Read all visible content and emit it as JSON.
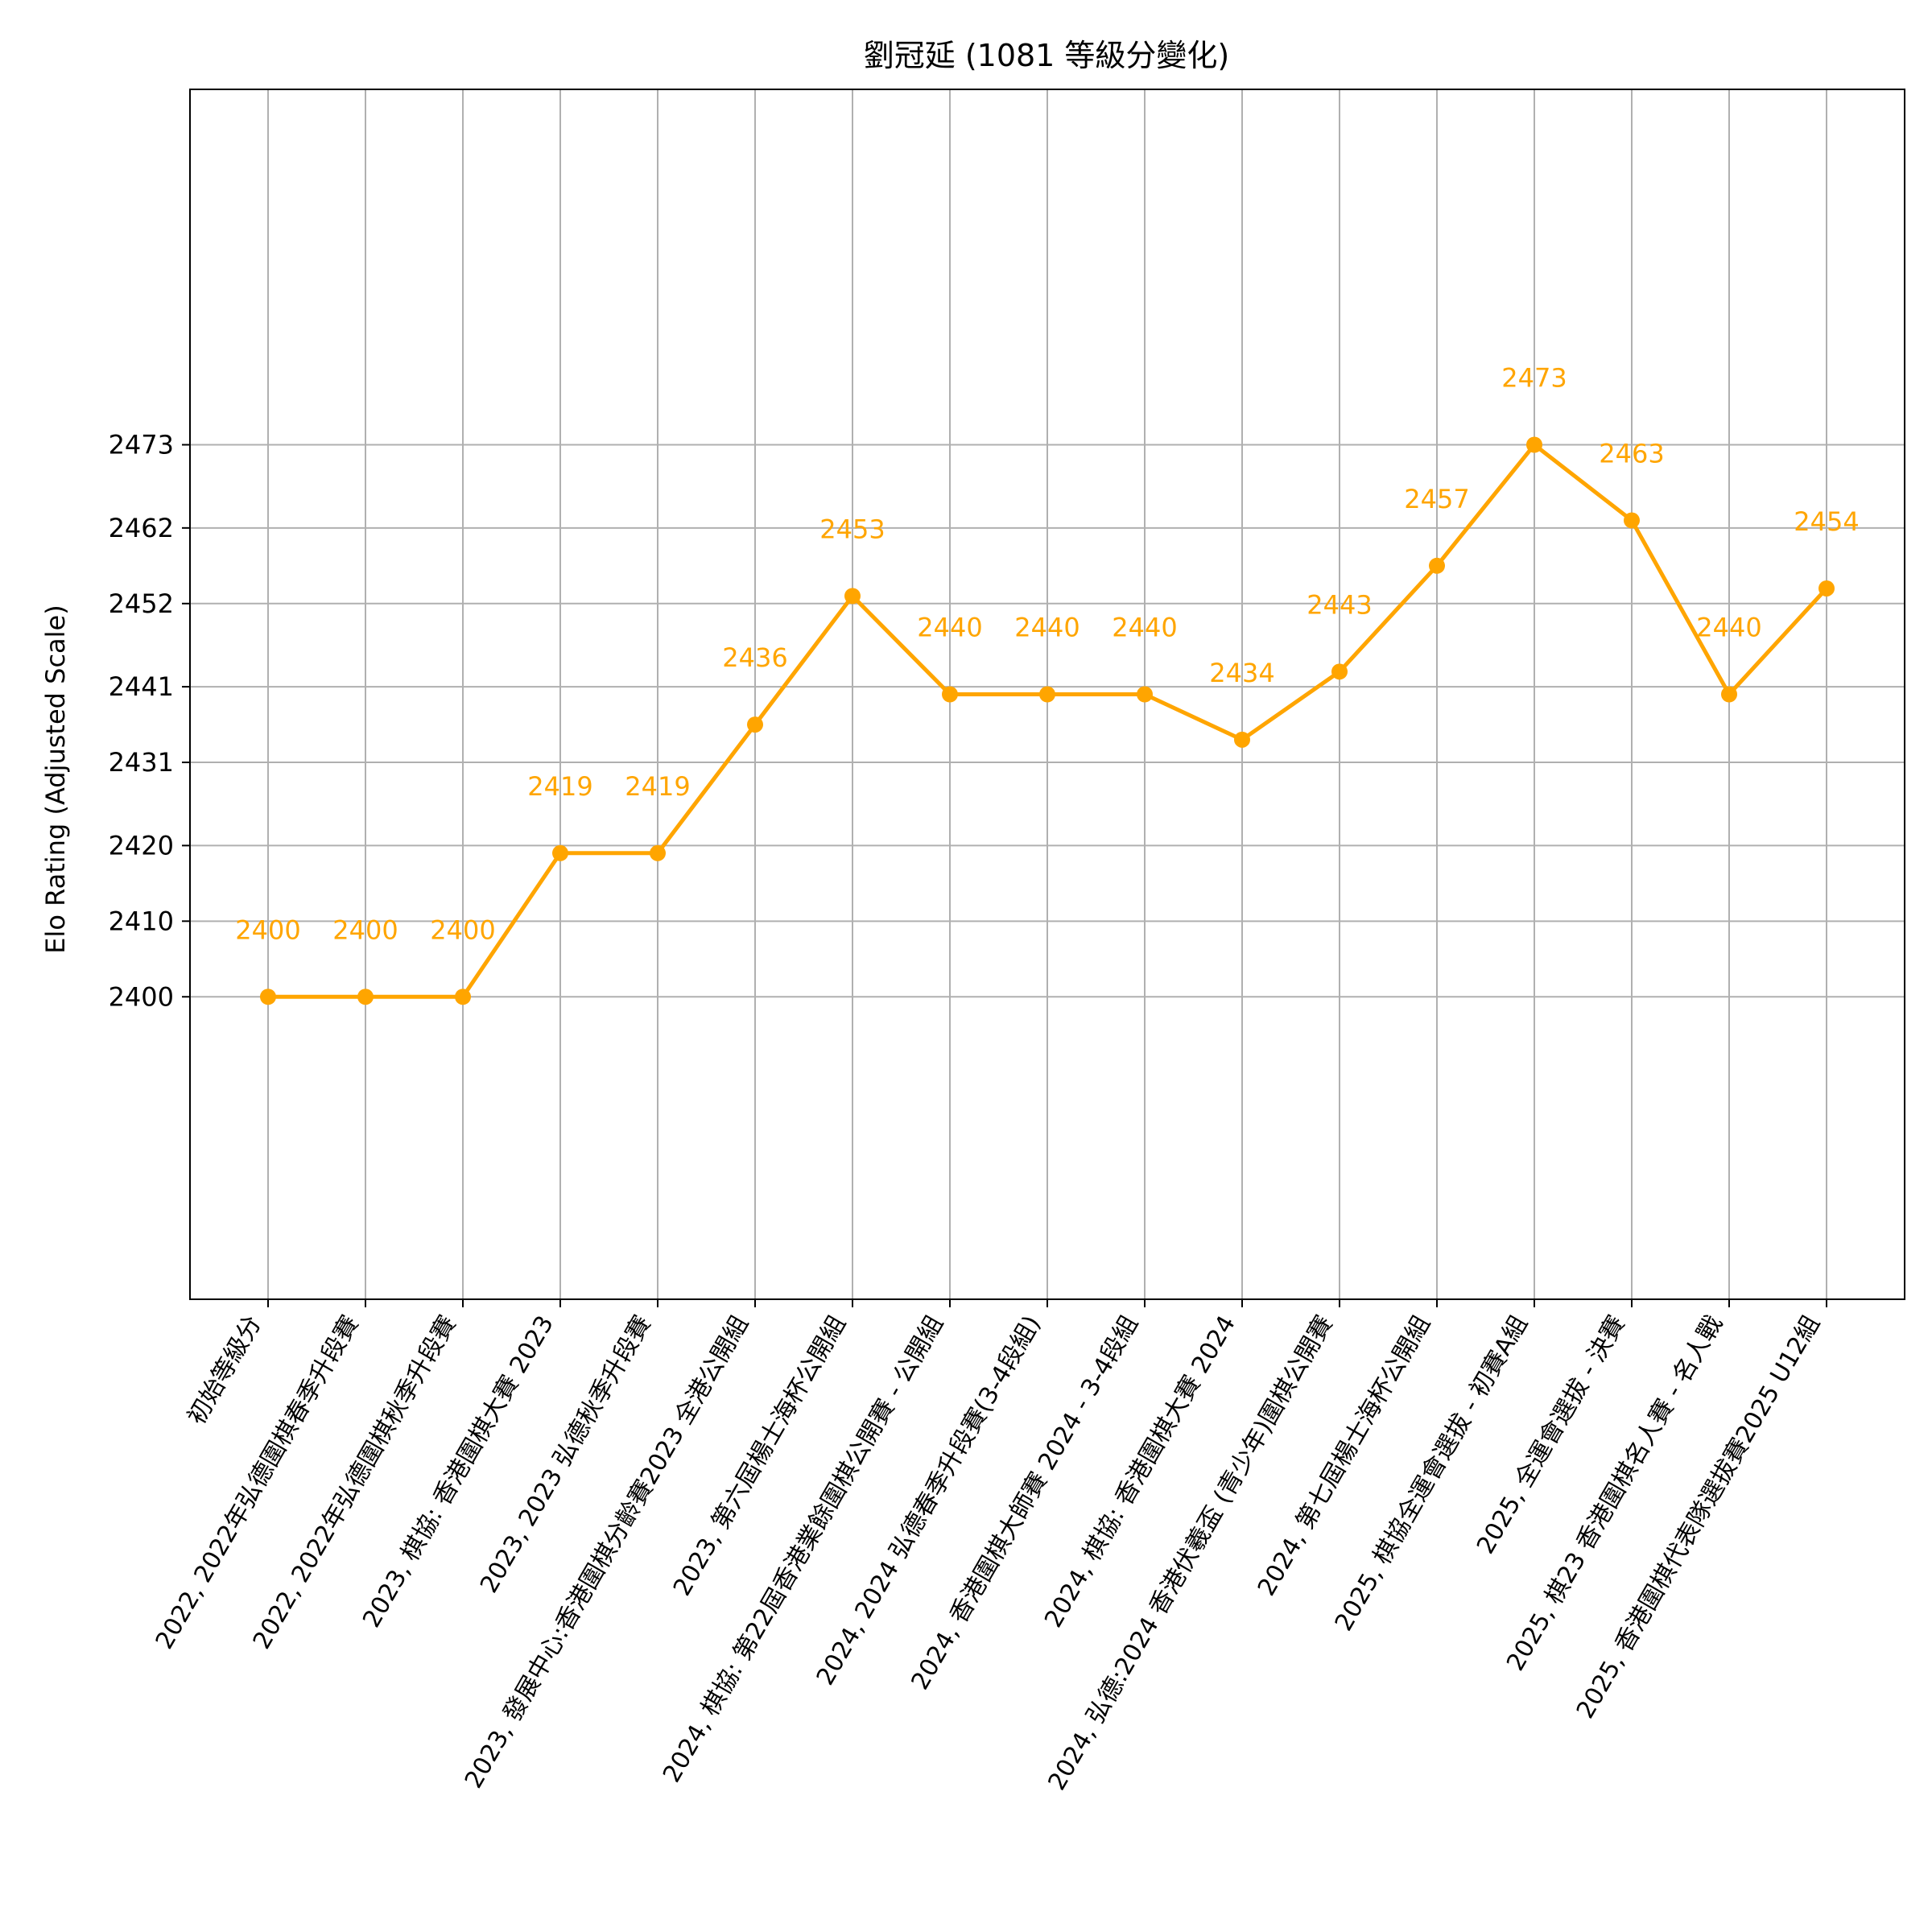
{
  "chart_data": {
    "type": "line",
    "title": "劉冠延 (1081 等級分變化)",
    "xlabel": "",
    "ylabel": "Elo Rating (Adjusted Scale)",
    "color": "#FFA500",
    "grid": true,
    "ylim": [
      2360,
      2520
    ],
    "yticks": [
      2400,
      2410,
      2420,
      2431,
      2441,
      2452,
      2462,
      2473
    ],
    "categories": [
      "初始等級分",
      "2022, 2022年弘德圍棋春季升段賽",
      "2022, 2022年弘德圍棋秋季升段賽",
      "2023, 棋協: 香港圍棋大賽 2023",
      "2023, 2023 弘德秋季升段賽",
      "2023, 發展中心:香港圍棋分齡賽2023 全港公開組",
      "2023, 第六屆楊士海杯公開組",
      "2024, 棋協: 第22屆香港業餘圍棋公開賽 - 公開組",
      "2024, 2024 弘德春季升段賽(3-4段組)",
      "2024, 香港圍棋大師賽 2024 - 3-4段組",
      "2024, 棋協: 香港圍棋大賽 2024",
      "2024, 弘德:2024 香港伏羲盃 (青少年)圍棋公開賽",
      "2024, 第七屆楊士海杯公開組",
      "2025, 棋協全運會選拔 - 初賽A組",
      "2025, 全運會選拔 - 決賽",
      "2025, 棋23 香港圍棋名人賽 - 名人戰",
      "2025, 香港圍棋代表隊選拔賽2025 U12組"
    ],
    "values": [
      2400,
      2400,
      2400,
      2419,
      2419,
      2436,
      2453,
      2440,
      2440,
      2440,
      2434,
      2443,
      2457,
      2473,
      2463,
      2440,
      2454
    ],
    "data_labels": [
      "2400",
      "2400",
      "2400",
      "2419",
      "2419",
      "2436",
      "2453",
      "2440",
      "2440",
      "2440",
      "2434",
      "2443",
      "2457",
      "2473",
      "2463",
      "2440",
      "2454"
    ]
  }
}
